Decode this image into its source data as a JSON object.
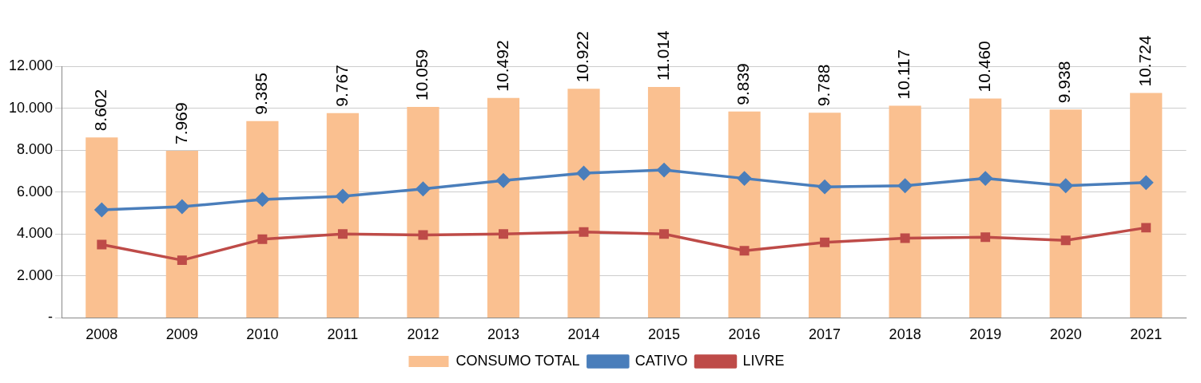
{
  "chart_data": {
    "type": "bar",
    "categories": [
      "2008",
      "2009",
      "2010",
      "2011",
      "2012",
      "2013",
      "2014",
      "2015",
      "2016",
      "2017",
      "2018",
      "2019",
      "2020",
      "2021"
    ],
    "series": [
      {
        "name": "CONSUMO TOTAL",
        "color": "#fac090",
        "values": [
          8602,
          7969,
          9385,
          9767,
          10059,
          10492,
          10922,
          11014,
          9839,
          9788,
          10117,
          10460,
          9938,
          10724
        ],
        "value_labels": [
          "8.602",
          "7.969",
          "9.385",
          "9.767",
          "10.059",
          "10.492",
          "10.922",
          "11.014",
          "9.839",
          "9.788",
          "10.117",
          "10.460",
          "9.938",
          "10.724"
        ]
      },
      {
        "name": "CATIVO",
        "type": "line",
        "color": "#4a7ebb",
        "marker": "diamond",
        "values": [
          5150,
          5300,
          5650,
          5800,
          6150,
          6550,
          6900,
          7050,
          6650,
          6250,
          6300,
          6650,
          6300,
          6450
        ]
      },
      {
        "name": "LIVRE",
        "type": "line",
        "color": "#be4b48",
        "marker": "square",
        "values": [
          3500,
          2750,
          3750,
          4000,
          3950,
          4000,
          4100,
          4000,
          3200,
          3600,
          3800,
          3850,
          3700,
          4300
        ]
      }
    ],
    "ylim": [
      0,
      12000
    ],
    "yticks": [
      {
        "value": 0,
        "label": "-"
      },
      {
        "value": 2000,
        "label": "2.000"
      },
      {
        "value": 4000,
        "label": "4.000"
      },
      {
        "value": 6000,
        "label": "6.000"
      },
      {
        "value": 8000,
        "label": "8.000"
      },
      {
        "value": 10000,
        "label": "10.000"
      },
      {
        "value": 12000,
        "label": "12.000"
      }
    ],
    "grid": "y",
    "legend": "bottom",
    "line_style": "solid"
  }
}
